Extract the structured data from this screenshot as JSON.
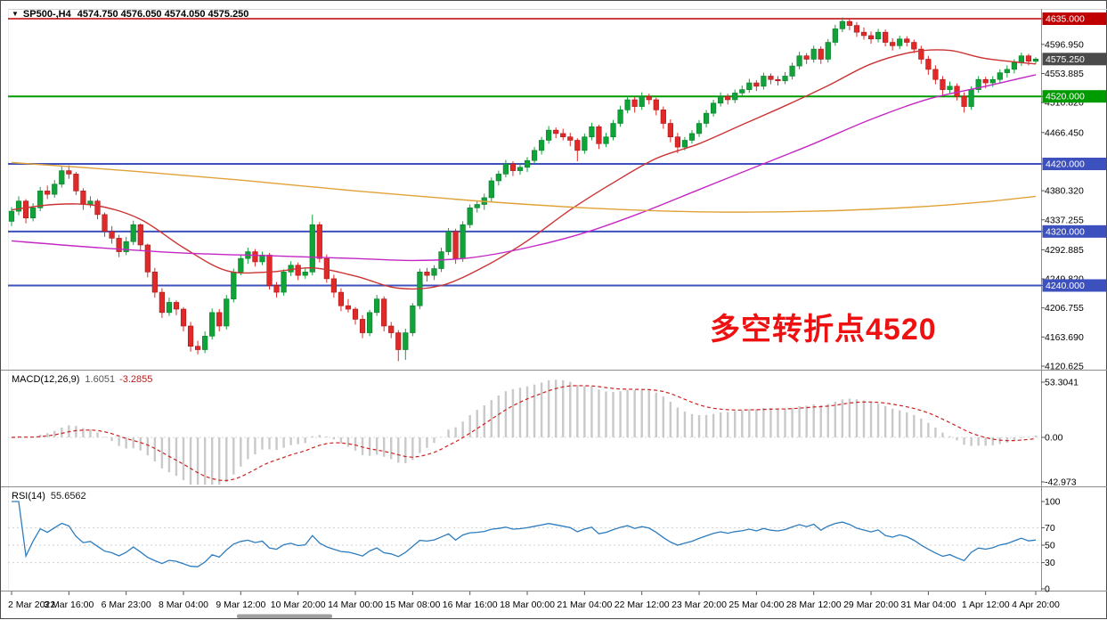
{
  "window": {
    "dropdown_icon": "▼",
    "title_symbol": "SP500-,H4",
    "title_ohlc": "4574.750 4576.050 4574.050 4575.250"
  },
  "annotation": {
    "text": "多空转折点4520",
    "color": "#ee1111"
  },
  "chart_data": {
    "type": "candlestick",
    "symbol": "SP500-",
    "timeframe": "H4",
    "current": {
      "open": 4574.75,
      "high": 4576.05,
      "low": 4574.05,
      "close": 4575.25
    },
    "ylim": [
      4120.625,
      4635.0
    ],
    "colors": {
      "bull": "#10a339",
      "bear": "#e02a2a",
      "ma_fast": "#cc3333",
      "ma_mid": "#c428c4",
      "ma_slow": "#e0a238",
      "macd_hist": "#c9c9c9",
      "macd_signal": "#cc2222",
      "rsi": "#2d7cbe"
    },
    "candles": [
      [
        4335,
        4356,
        4328,
        4350
      ],
      [
        4350,
        4372,
        4344,
        4365
      ],
      [
        4365,
        4368,
        4332,
        4340
      ],
      [
        4340,
        4362,
        4335,
        4355
      ],
      [
        4355,
        4386,
        4350,
        4380
      ],
      [
        4380,
        4388,
        4368,
        4375
      ],
      [
        4375,
        4396,
        4370,
        4390
      ],
      [
        4390,
        4416,
        4385,
        4410
      ],
      [
        4410,
        4418,
        4398,
        4405
      ],
      [
        4405,
        4408,
        4374,
        4380
      ],
      [
        4380,
        4384,
        4352,
        4360
      ],
      [
        4360,
        4372,
        4355,
        4365
      ],
      [
        4365,
        4368,
        4338,
        4345
      ],
      [
        4345,
        4348,
        4312,
        4320
      ],
      [
        4320,
        4328,
        4302,
        4310
      ],
      [
        4310,
        4315,
        4282,
        4290
      ],
      [
        4290,
        4312,
        4285,
        4305
      ],
      [
        4305,
        4336,
        4300,
        4330
      ],
      [
        4330,
        4332,
        4292,
        4300
      ],
      [
        4300,
        4302,
        4252,
        4260
      ],
      [
        4260,
        4266,
        4222,
        4230
      ],
      [
        4230,
        4236,
        4192,
        4200
      ],
      [
        4200,
        4222,
        4195,
        4215
      ],
      [
        4215,
        4218,
        4196,
        4205
      ],
      [
        4205,
        4208,
        4172,
        4180
      ],
      [
        4180,
        4186,
        4142,
        4150
      ],
      [
        4150,
        4158,
        4138,
        4145
      ],
      [
        4145,
        4172,
        4140,
        4165
      ],
      [
        4165,
        4206,
        4160,
        4200
      ],
      [
        4200,
        4205,
        4172,
        4180
      ],
      [
        4180,
        4226,
        4175,
        4220
      ],
      [
        4220,
        4265,
        4215,
        4260
      ],
      [
        4260,
        4286,
        4255,
        4280
      ],
      [
        4280,
        4296,
        4272,
        4290
      ],
      [
        4290,
        4294,
        4268,
        4275
      ],
      [
        4275,
        4290,
        4270,
        4285
      ],
      [
        4285,
        4288,
        4234,
        4240
      ],
      [
        4240,
        4245,
        4222,
        4230
      ],
      [
        4230,
        4264,
        4225,
        4260
      ],
      [
        4260,
        4276,
        4254,
        4270
      ],
      [
        4270,
        4274,
        4248,
        4255
      ],
      [
        4255,
        4266,
        4250,
        4260
      ],
      [
        4260,
        4345,
        4255,
        4330
      ],
      [
        4330,
        4334,
        4274,
        4280
      ],
      [
        4280,
        4286,
        4244,
        4250
      ],
      [
        4250,
        4256,
        4222,
        4230
      ],
      [
        4230,
        4236,
        4202,
        4210
      ],
      [
        4210,
        4220,
        4200,
        4205
      ],
      [
        4205,
        4208,
        4182,
        4190
      ],
      [
        4190,
        4196,
        4162,
        4170
      ],
      [
        4170,
        4204,
        4165,
        4200
      ],
      [
        4200,
        4226,
        4195,
        4220
      ],
      [
        4220,
        4224,
        4172,
        4180
      ],
      [
        4180,
        4186,
        4162,
        4170
      ],
      [
        4170,
        4174,
        4128,
        4145
      ],
      [
        4145,
        4176,
        4130,
        4170
      ],
      [
        4170,
        4214,
        4165,
        4210
      ],
      [
        4210,
        4265,
        4205,
        4260
      ],
      [
        4260,
        4266,
        4246,
        4255
      ],
      [
        4255,
        4270,
        4248,
        4265
      ],
      [
        4265,
        4296,
        4260,
        4290
      ],
      [
        4290,
        4325,
        4285,
        4320
      ],
      [
        4320,
        4324,
        4272,
        4280
      ],
      [
        4280,
        4335,
        4275,
        4330
      ],
      [
        4330,
        4360,
        4325,
        4355
      ],
      [
        4355,
        4366,
        4348,
        4360
      ],
      [
        4360,
        4376,
        4352,
        4370
      ],
      [
        4370,
        4400,
        4364,
        4395
      ],
      [
        4395,
        4410,
        4388,
        4405
      ],
      [
        4405,
        4426,
        4400,
        4420
      ],
      [
        4420,
        4424,
        4402,
        4410
      ],
      [
        4410,
        4420,
        4404,
        4415
      ],
      [
        4415,
        4430,
        4408,
        4425
      ],
      [
        4425,
        4445,
        4420,
        4440
      ],
      [
        4440,
        4460,
        4434,
        4455
      ],
      [
        4455,
        4476,
        4450,
        4470
      ],
      [
        4470,
        4474,
        4458,
        4465
      ],
      [
        4465,
        4472,
        4455,
        4460
      ],
      [
        4460,
        4466,
        4446,
        4455
      ],
      [
        4455,
        4458,
        4424,
        4440
      ],
      [
        4440,
        4465,
        4435,
        4460
      ],
      [
        4460,
        4481,
        4455,
        4475
      ],
      [
        4475,
        4478,
        4442,
        4450
      ],
      [
        4450,
        4466,
        4445,
        4460
      ],
      [
        4460,
        4485,
        4455,
        4480
      ],
      [
        4480,
        4506,
        4475,
        4500
      ],
      [
        4500,
        4520,
        4495,
        4515
      ],
      [
        4515,
        4519,
        4496,
        4505
      ],
      [
        4505,
        4526,
        4500,
        4520
      ],
      [
        4520,
        4524,
        4508,
        4515
      ],
      [
        4515,
        4518,
        4492,
        4500
      ],
      [
        4500,
        4505,
        4472,
        4480
      ],
      [
        4480,
        4486,
        4452,
        4460
      ],
      [
        4460,
        4466,
        4436,
        4445
      ],
      [
        4445,
        4460,
        4440,
        4455
      ],
      [
        4455,
        4470,
        4450,
        4465
      ],
      [
        4465,
        4485,
        4460,
        4480
      ],
      [
        4480,
        4500,
        4474,
        4495
      ],
      [
        4495,
        4515,
        4490,
        4510
      ],
      [
        4510,
        4526,
        4505,
        4520
      ],
      [
        4520,
        4524,
        4508,
        4515
      ],
      [
        4515,
        4530,
        4510,
        4525
      ],
      [
        4525,
        4536,
        4520,
        4530
      ],
      [
        4530,
        4546,
        4525,
        4540
      ],
      [
        4540,
        4544,
        4528,
        4535
      ],
      [
        4535,
        4555,
        4530,
        4550
      ],
      [
        4550,
        4554,
        4538,
        4545
      ],
      [
        4545,
        4550,
        4536,
        4543
      ],
      [
        4543,
        4556,
        4538,
        4550
      ],
      [
        4550,
        4570,
        4545,
        4565
      ],
      [
        4565,
        4586,
        4560,
        4580
      ],
      [
        4580,
        4584,
        4568,
        4575
      ],
      [
        4575,
        4595,
        4570,
        4590
      ],
      [
        4590,
        4594,
        4568,
        4575
      ],
      [
        4575,
        4605,
        4570,
        4600
      ],
      [
        4600,
        4626,
        4595,
        4620
      ],
      [
        4620,
        4637,
        4615,
        4631
      ],
      [
        4631,
        4635,
        4618,
        4625
      ],
      [
        4625,
        4630,
        4608,
        4615
      ],
      [
        4615,
        4622,
        4604,
        4610
      ],
      [
        4610,
        4616,
        4598,
        4605
      ],
      [
        4605,
        4620,
        4600,
        4615
      ],
      [
        4615,
        4619,
        4594,
        4600
      ],
      [
        4600,
        4606,
        4588,
        4595
      ],
      [
        4595,
        4610,
        4590,
        4605
      ],
      [
        4605,
        4609,
        4594,
        4600
      ],
      [
        4600,
        4604,
        4584,
        4590
      ],
      [
        4590,
        4595,
        4568,
        4575
      ],
      [
        4575,
        4580,
        4552,
        4560
      ],
      [
        4560,
        4566,
        4538,
        4545
      ],
      [
        4545,
        4550,
        4522,
        4530
      ],
      [
        4530,
        4542,
        4525,
        4535
      ],
      [
        4535,
        4539,
        4514,
        4520
      ],
      [
        4520,
        4526,
        4496,
        4505
      ],
      [
        4505,
        4535,
        4500,
        4530
      ],
      [
        4530,
        4550,
        4525,
        4545
      ],
      [
        4545,
        4549,
        4532,
        4540
      ],
      [
        4540,
        4550,
        4534,
        4545
      ],
      [
        4545,
        4560,
        4540,
        4555
      ],
      [
        4555,
        4566,
        4548,
        4560
      ],
      [
        4560,
        4575,
        4554,
        4570
      ],
      [
        4570,
        4585,
        4565,
        4580
      ],
      [
        4580,
        4583,
        4566,
        4572
      ],
      [
        4572,
        4578,
        4568,
        4575.25
      ]
    ],
    "overlays": [
      {
        "name": "ma-fast-red-line",
        "color_key": "ma_fast",
        "anchors": [
          [
            0,
            4352
          ],
          [
            6,
            4360
          ],
          [
            12,
            4358
          ],
          [
            18,
            4338
          ],
          [
            24,
            4296
          ],
          [
            30,
            4262
          ],
          [
            36,
            4260
          ],
          [
            42,
            4266
          ],
          [
            48,
            4254
          ],
          [
            54,
            4236
          ],
          [
            60,
            4240
          ],
          [
            66,
            4268
          ],
          [
            72,
            4306
          ],
          [
            78,
            4352
          ],
          [
            84,
            4392
          ],
          [
            90,
            4428
          ],
          [
            96,
            4450
          ],
          [
            102,
            4478
          ],
          [
            108,
            4506
          ],
          [
            114,
            4536
          ],
          [
            120,
            4568
          ],
          [
            126,
            4586
          ],
          [
            131,
            4588
          ],
          [
            136,
            4576
          ],
          [
            143,
            4568
          ]
        ]
      },
      {
        "name": "ma-mid-magenta-line",
        "color_key": "ma_mid",
        "anchors": [
          [
            0,
            4306
          ],
          [
            12,
            4296
          ],
          [
            24,
            4288
          ],
          [
            36,
            4284
          ],
          [
            48,
            4280
          ],
          [
            56,
            4277
          ],
          [
            64,
            4281
          ],
          [
            72,
            4296
          ],
          [
            80,
            4318
          ],
          [
            88,
            4348
          ],
          [
            96,
            4382
          ],
          [
            104,
            4416
          ],
          [
            112,
            4450
          ],
          [
            120,
            4486
          ],
          [
            128,
            4516
          ],
          [
            136,
            4535
          ],
          [
            143,
            4552
          ]
        ]
      },
      {
        "name": "ma-slow-orange-line",
        "color_key": "ma_slow",
        "anchors": [
          [
            0,
            4422
          ],
          [
            16,
            4410
          ],
          [
            32,
            4396
          ],
          [
            48,
            4380
          ],
          [
            64,
            4366
          ],
          [
            80,
            4355
          ],
          [
            96,
            4349
          ],
          [
            112,
            4350
          ],
          [
            126,
            4356
          ],
          [
            136,
            4364
          ],
          [
            143,
            4372
          ]
        ]
      }
    ],
    "hlines": [
      {
        "price": 4635.0,
        "label": "4635.000",
        "color": "#c00000",
        "width": 1.4
      },
      {
        "price": 4520.0,
        "label": "4520.000",
        "color": "#009b00",
        "width": 2
      },
      {
        "price": 4420.0,
        "label": "4420.000",
        "color": "#3c50be",
        "width": 2
      },
      {
        "price": 4320.0,
        "label": "4320.000",
        "color": "#3c50be",
        "width": 2
      },
      {
        "price": 4240.0,
        "label": "4240.000",
        "color": "#3c50be",
        "width": 2
      }
    ],
    "current_price_label": {
      "value": 4575.25,
      "text": "4575.250",
      "bg": "#4a4a4a"
    },
    "price_axis_labels": [
      "4596.950",
      "4553.885",
      "4510.820",
      "4466.450",
      "4380.320",
      "4337.255",
      "4292.885",
      "4249.820",
      "4206.755",
      "4163.690",
      "4120.625"
    ],
    "time_labels": [
      "2 Mar 2022",
      "3 Mar 16:00",
      "6 Mar 23:00",
      "8 Mar 04:00",
      "9 Mar 12:00",
      "10 Mar 20:00",
      "14 Mar 00:00",
      "15 Mar 08:00",
      "16 Mar 16:00",
      "18 Mar 00:00",
      "21 Mar 04:00",
      "22 Mar 12:00",
      "23 Mar 20:00",
      "25 Mar 04:00",
      "28 Mar 12:00",
      "29 Mar 20:00",
      "31 Mar 04:00",
      "1 Apr 12:00",
      "4 Apr 20:00"
    ],
    "indicators": [
      {
        "type": "macd",
        "label": "MACD(12,26,9)",
        "value_main": "1.6051",
        "value_signal": "-3.2855",
        "params": [
          12,
          26,
          9
        ],
        "scale_top": 53.3041,
        "axis": {
          "top": "53.3041",
          "zero": "0.00",
          "bottom": "-42.973"
        }
      },
      {
        "type": "rsi",
        "label": "RSI(14)",
        "value": "55.6562",
        "params": [
          14
        ],
        "axis_labels": [
          "100",
          "70",
          "50",
          "30",
          "0"
        ],
        "levels": [
          70,
          50,
          30
        ],
        "scale": [
          0,
          100
        ]
      }
    ]
  }
}
